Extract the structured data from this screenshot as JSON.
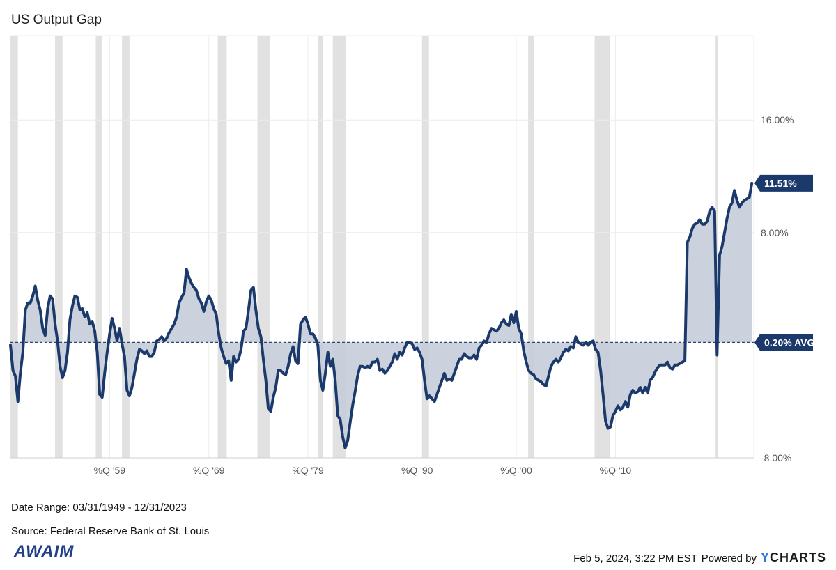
{
  "title": "US Output Gap",
  "chart_data": {
    "type": "line",
    "title": "US Output Gap",
    "series_name": "US Output Gap",
    "x_range": [
      1949.0,
      2023.95
    ],
    "ylim": [
      -8,
      22
    ],
    "y_ticks": [
      {
        "value": 16,
        "label": "16.00%"
      },
      {
        "value": 8,
        "label": "8.00%"
      },
      {
        "value": -8,
        "label": "-8.00%"
      }
    ],
    "x_ticks": [
      {
        "value": 1959,
        "label": "%Q '59"
      },
      {
        "value": 1969,
        "label": "%Q '69"
      },
      {
        "value": 1979,
        "label": "%Q '79"
      },
      {
        "value": 1990,
        "label": "%Q '90"
      },
      {
        "value": 2000,
        "label": "%Q '00"
      },
      {
        "value": 2010,
        "label": "%Q '10"
      }
    ],
    "average": {
      "value": 0.2,
      "label": "0.20% AVG"
    },
    "last": {
      "value": 11.51,
      "label": "11.51%"
    },
    "recessions": [
      [
        1949.0,
        1949.75
      ],
      [
        1953.5,
        1954.25
      ],
      [
        1957.6,
        1958.25
      ],
      [
        1960.25,
        1961.0
      ],
      [
        1969.9,
        1970.8
      ],
      [
        1973.9,
        1975.2
      ],
      [
        1980.0,
        1980.5
      ],
      [
        1981.5,
        1982.8
      ],
      [
        1990.5,
        1991.2
      ],
      [
        2001.2,
        2001.8
      ],
      [
        2007.9,
        2009.45
      ],
      [
        2020.1,
        2020.35
      ]
    ],
    "points": [
      [
        1949.0,
        0.0
      ],
      [
        1949.25,
        -1.8
      ],
      [
        1949.5,
        -2.2
      ],
      [
        1949.75,
        -4.0
      ],
      [
        1950.0,
        -2.0
      ],
      [
        1950.25,
        -0.5
      ],
      [
        1950.5,
        2.5
      ],
      [
        1950.75,
        3.0
      ],
      [
        1951.0,
        3.0
      ],
      [
        1951.25,
        3.5
      ],
      [
        1951.5,
        4.2
      ],
      [
        1951.75,
        3.2
      ],
      [
        1952.0,
        2.5
      ],
      [
        1952.25,
        1.2
      ],
      [
        1952.5,
        0.7
      ],
      [
        1952.75,
        2.6
      ],
      [
        1953.0,
        3.5
      ],
      [
        1953.25,
        3.3
      ],
      [
        1953.5,
        1.5
      ],
      [
        1953.75,
        0.3
      ],
      [
        1954.0,
        -1.5
      ],
      [
        1954.25,
        -2.3
      ],
      [
        1954.5,
        -1.8
      ],
      [
        1954.75,
        -0.5
      ],
      [
        1955.0,
        1.8
      ],
      [
        1955.25,
        2.8
      ],
      [
        1955.5,
        3.5
      ],
      [
        1955.75,
        3.4
      ],
      [
        1956.0,
        2.5
      ],
      [
        1956.25,
        2.6
      ],
      [
        1956.5,
        2.0
      ],
      [
        1956.75,
        2.3
      ],
      [
        1957.0,
        1.5
      ],
      [
        1957.25,
        1.7
      ],
      [
        1957.5,
        1.0
      ],
      [
        1957.75,
        -0.5
      ],
      [
        1958.0,
        -3.5
      ],
      [
        1958.25,
        -3.7
      ],
      [
        1958.5,
        -2.0
      ],
      [
        1958.75,
        -0.5
      ],
      [
        1959.0,
        0.8
      ],
      [
        1959.25,
        1.9
      ],
      [
        1959.5,
        1.2
      ],
      [
        1959.75,
        0.3
      ],
      [
        1960.0,
        1.2
      ],
      [
        1960.25,
        0.1
      ],
      [
        1960.5,
        -0.8
      ],
      [
        1960.75,
        -3.2
      ],
      [
        1961.0,
        -3.6
      ],
      [
        1961.25,
        -3.0
      ],
      [
        1961.5,
        -2.0
      ],
      [
        1961.75,
        -1.0
      ],
      [
        1962.0,
        -0.3
      ],
      [
        1962.25,
        -0.4
      ],
      [
        1962.5,
        -0.6
      ],
      [
        1962.75,
        -0.4
      ],
      [
        1963.0,
        -0.8
      ],
      [
        1963.25,
        -0.8
      ],
      [
        1963.5,
        -0.5
      ],
      [
        1963.75,
        0.3
      ],
      [
        1964.0,
        0.4
      ],
      [
        1964.25,
        0.6
      ],
      [
        1964.5,
        0.3
      ],
      [
        1964.75,
        0.5
      ],
      [
        1965.0,
        0.9
      ],
      [
        1965.25,
        1.2
      ],
      [
        1965.5,
        1.5
      ],
      [
        1965.75,
        2.0
      ],
      [
        1966.0,
        3.0
      ],
      [
        1966.25,
        3.4
      ],
      [
        1966.5,
        3.7
      ],
      [
        1966.75,
        5.4
      ],
      [
        1967.0,
        4.8
      ],
      [
        1967.25,
        4.4
      ],
      [
        1967.5,
        4.1
      ],
      [
        1967.75,
        3.9
      ],
      [
        1968.0,
        3.3
      ],
      [
        1968.25,
        3.0
      ],
      [
        1968.5,
        2.4
      ],
      [
        1968.75,
        3.1
      ],
      [
        1969.0,
        3.5
      ],
      [
        1969.25,
        3.2
      ],
      [
        1969.5,
        2.6
      ],
      [
        1969.75,
        2.2
      ],
      [
        1970.0,
        0.8
      ],
      [
        1970.25,
        -0.2
      ],
      [
        1970.5,
        -0.8
      ],
      [
        1970.75,
        -1.3
      ],
      [
        1971.0,
        -1.1
      ],
      [
        1971.25,
        -2.5
      ],
      [
        1971.5,
        -0.8
      ],
      [
        1971.75,
        -1.2
      ],
      [
        1972.0,
        -1.0
      ],
      [
        1972.25,
        -0.3
      ],
      [
        1972.5,
        1.0
      ],
      [
        1972.75,
        1.2
      ],
      [
        1973.0,
        2.5
      ],
      [
        1973.25,
        3.9
      ],
      [
        1973.5,
        4.1
      ],
      [
        1973.75,
        2.5
      ],
      [
        1974.0,
        1.2
      ],
      [
        1974.25,
        0.6
      ],
      [
        1974.5,
        -1.0
      ],
      [
        1974.75,
        -2.5
      ],
      [
        1975.0,
        -4.5
      ],
      [
        1975.25,
        -4.7
      ],
      [
        1975.5,
        -3.7
      ],
      [
        1975.75,
        -3.0
      ],
      [
        1976.0,
        -1.8
      ],
      [
        1976.25,
        -1.8
      ],
      [
        1976.5,
        -2.0
      ],
      [
        1976.75,
        -2.1
      ],
      [
        1977.0,
        -1.5
      ],
      [
        1977.25,
        -0.6
      ],
      [
        1977.5,
        -0.1
      ],
      [
        1977.75,
        -1.1
      ],
      [
        1978.0,
        -1.3
      ],
      [
        1978.25,
        1.5
      ],
      [
        1978.5,
        1.8
      ],
      [
        1978.75,
        2.0
      ],
      [
        1979.0,
        1.5
      ],
      [
        1979.25,
        0.8
      ],
      [
        1979.5,
        0.8
      ],
      [
        1979.75,
        0.5
      ],
      [
        1980.0,
        0.0
      ],
      [
        1980.25,
        -2.5
      ],
      [
        1980.5,
        -3.2
      ],
      [
        1980.75,
        -2.0
      ],
      [
        1981.0,
        -0.5
      ],
      [
        1981.25,
        -1.5
      ],
      [
        1981.5,
        -1.0
      ],
      [
        1981.75,
        -2.5
      ],
      [
        1982.0,
        -5.0
      ],
      [
        1982.25,
        -5.3
      ],
      [
        1982.5,
        -6.5
      ],
      [
        1982.75,
        -7.3
      ],
      [
        1983.0,
        -6.8
      ],
      [
        1983.25,
        -5.5
      ],
      [
        1983.5,
        -4.3
      ],
      [
        1983.75,
        -3.3
      ],
      [
        1984.0,
        -2.2
      ],
      [
        1984.25,
        -1.5
      ],
      [
        1984.5,
        -1.5
      ],
      [
        1984.75,
        -1.6
      ],
      [
        1985.0,
        -1.5
      ],
      [
        1985.25,
        -1.6
      ],
      [
        1985.5,
        -1.2
      ],
      [
        1985.75,
        -1.2
      ],
      [
        1986.0,
        -1.0
      ],
      [
        1986.25,
        -1.8
      ],
      [
        1986.5,
        -1.7
      ],
      [
        1986.75,
        -2.0
      ],
      [
        1987.0,
        -1.8
      ],
      [
        1987.25,
        -1.5
      ],
      [
        1987.5,
        -1.2
      ],
      [
        1987.75,
        -0.6
      ],
      [
        1988.0,
        -1.0
      ],
      [
        1988.25,
        -0.5
      ],
      [
        1988.5,
        -0.7
      ],
      [
        1988.75,
        -0.2
      ],
      [
        1989.0,
        0.2
      ],
      [
        1989.25,
        0.2
      ],
      [
        1989.5,
        0.1
      ],
      [
        1989.75,
        -0.3
      ],
      [
        1990.0,
        -0.2
      ],
      [
        1990.25,
        -0.5
      ],
      [
        1990.5,
        -1.0
      ],
      [
        1990.75,
        -2.5
      ],
      [
        1991.0,
        -3.8
      ],
      [
        1991.25,
        -3.6
      ],
      [
        1991.5,
        -3.8
      ],
      [
        1991.75,
        -4.0
      ],
      [
        1992.0,
        -3.5
      ],
      [
        1992.25,
        -3.0
      ],
      [
        1992.5,
        -2.5
      ],
      [
        1992.75,
        -2.0
      ],
      [
        1993.0,
        -2.5
      ],
      [
        1993.25,
        -2.4
      ],
      [
        1993.5,
        -2.5
      ],
      [
        1993.75,
        -2.0
      ],
      [
        1994.0,
        -1.5
      ],
      [
        1994.25,
        -1.0
      ],
      [
        1994.5,
        -1.0
      ],
      [
        1994.75,
        -0.6
      ],
      [
        1995.0,
        -0.8
      ],
      [
        1995.25,
        -0.9
      ],
      [
        1995.5,
        -0.9
      ],
      [
        1995.75,
        -0.7
      ],
      [
        1996.0,
        -1.0
      ],
      [
        1996.25,
        -0.2
      ],
      [
        1996.5,
        0.0
      ],
      [
        1996.75,
        0.3
      ],
      [
        1997.0,
        0.2
      ],
      [
        1997.25,
        0.8
      ],
      [
        1997.5,
        1.2
      ],
      [
        1997.75,
        1.1
      ],
      [
        1998.0,
        1.0
      ],
      [
        1998.25,
        1.2
      ],
      [
        1998.5,
        1.6
      ],
      [
        1998.75,
        1.8
      ],
      [
        1999.0,
        1.5
      ],
      [
        1999.25,
        1.4
      ],
      [
        1999.5,
        2.2
      ],
      [
        1999.75,
        1.6
      ],
      [
        2000.0,
        2.4
      ],
      [
        2000.25,
        1.2
      ],
      [
        2000.5,
        0.8
      ],
      [
        2000.75,
        -0.4
      ],
      [
        2001.0,
        -1.2
      ],
      [
        2001.25,
        -1.8
      ],
      [
        2001.5,
        -2.0
      ],
      [
        2001.75,
        -2.1
      ],
      [
        2002.0,
        -2.4
      ],
      [
        2002.25,
        -2.5
      ],
      [
        2002.5,
        -2.6
      ],
      [
        2002.75,
        -2.8
      ],
      [
        2003.0,
        -2.9
      ],
      [
        2003.25,
        -2.2
      ],
      [
        2003.5,
        -1.5
      ],
      [
        2003.75,
        -1.2
      ],
      [
        2004.0,
        -1.0
      ],
      [
        2004.25,
        -1.2
      ],
      [
        2004.5,
        -0.9
      ],
      [
        2004.75,
        -0.5
      ],
      [
        2005.0,
        -0.3
      ],
      [
        2005.25,
        -0.4
      ],
      [
        2005.5,
        -0.1
      ],
      [
        2005.75,
        -0.2
      ],
      [
        2006.0,
        0.6
      ],
      [
        2006.25,
        0.2
      ],
      [
        2006.5,
        0.1
      ],
      [
        2006.75,
        0.0
      ],
      [
        2007.0,
        0.2
      ],
      [
        2007.25,
        0.0
      ],
      [
        2007.5,
        0.2
      ],
      [
        2007.75,
        0.3
      ],
      [
        2008.0,
        -0.3
      ],
      [
        2008.25,
        -0.5
      ],
      [
        2008.5,
        -1.8
      ],
      [
        2008.75,
        -3.5
      ],
      [
        2009.0,
        -5.4
      ],
      [
        2009.25,
        -5.9
      ],
      [
        2009.5,
        -5.8
      ],
      [
        2009.75,
        -5.0
      ],
      [
        2010.0,
        -4.7
      ],
      [
        2010.25,
        -4.3
      ],
      [
        2010.5,
        -4.6
      ],
      [
        2010.75,
        -4.4
      ],
      [
        2011.0,
        -4.0
      ],
      [
        2011.25,
        -4.4
      ],
      [
        2011.5,
        -3.5
      ],
      [
        2011.75,
        -3.2
      ],
      [
        2012.0,
        -3.4
      ],
      [
        2012.25,
        -3.3
      ],
      [
        2012.5,
        -3.0
      ],
      [
        2012.75,
        -3.4
      ],
      [
        2013.0,
        -3.0
      ],
      [
        2013.25,
        -3.4
      ],
      [
        2013.5,
        -2.5
      ],
      [
        2013.75,
        -2.3
      ],
      [
        2014.0,
        -1.9
      ],
      [
        2014.25,
        -1.6
      ],
      [
        2014.5,
        -1.4
      ],
      [
        2014.75,
        -1.4
      ],
      [
        2015.0,
        -1.4
      ],
      [
        2015.25,
        -1.2
      ],
      [
        2015.5,
        -1.6
      ],
      [
        2015.75,
        -1.7
      ],
      [
        2016.0,
        -1.4
      ],
      [
        2016.25,
        -1.4
      ],
      [
        2016.5,
        -1.3
      ],
      [
        2016.75,
        -1.2
      ],
      [
        2017.0,
        -1.1
      ],
      [
        2017.25,
        7.3
      ],
      [
        2017.5,
        7.7
      ],
      [
        2017.75,
        8.3
      ],
      [
        2018.0,
        8.6
      ],
      [
        2018.25,
        8.7
      ],
      [
        2018.5,
        8.9
      ],
      [
        2018.75,
        8.6
      ],
      [
        2019.0,
        8.6
      ],
      [
        2019.25,
        8.8
      ],
      [
        2019.5,
        9.5
      ],
      [
        2019.75,
        9.8
      ],
      [
        2020.0,
        9.5
      ],
      [
        2020.25,
        -0.7
      ],
      [
        2020.5,
        6.4
      ],
      [
        2020.75,
        7.0
      ],
      [
        2021.0,
        8.0
      ],
      [
        2021.25,
        9.0
      ],
      [
        2021.5,
        9.8
      ],
      [
        2021.75,
        10.1
      ],
      [
        2022.0,
        11.0
      ],
      [
        2022.25,
        10.3
      ],
      [
        2022.5,
        9.8
      ],
      [
        2022.75,
        10.1
      ],
      [
        2023.0,
        10.3
      ],
      [
        2023.25,
        10.4
      ],
      [
        2023.5,
        10.5
      ],
      [
        2023.75,
        11.51
      ]
    ]
  },
  "date_range": "Date Range: 03/31/1949 - 12/31/2023",
  "source": "Source: Federal Reserve Bank of St. Louis",
  "logo_text": "AWAIM",
  "footer": {
    "timestamp": "Feb 5, 2024, 3:22 PM EST",
    "powered_by": "Powered by",
    "brand_y": "Y",
    "brand_rest": "CHARTS"
  },
  "colors": {
    "line": "#1b3a6b",
    "fill": "#c5cdda",
    "recession": "#e1e1e1",
    "grid": "#ececec",
    "avg_line": "#2d4670"
  }
}
